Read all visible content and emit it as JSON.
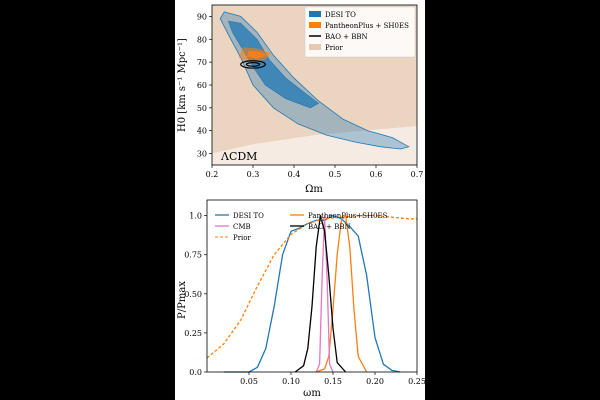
{
  "colors": {
    "desi": "#1f77b4",
    "pantheon": "#ff7f0e",
    "prior": "#e6c9b0",
    "cmb": "#e377c2",
    "bao": "#000000"
  },
  "chart_data": [
    {
      "type": "contour",
      "xlabel": "Ωm",
      "ylabel": "H0 [km s⁻¹ Mpc⁻¹]",
      "xlim": [
        0.2,
        0.7
      ],
      "ylim": [
        25,
        95
      ],
      "xticks": [
        "0.2",
        "0.3",
        "0.4",
        "0.5",
        "0.6",
        "0.7"
      ],
      "yticks": [
        "30",
        "40",
        "50",
        "60",
        "70",
        "80",
        "90"
      ],
      "legend_position": "top-right",
      "legend": [
        "DESI TO",
        "PantheonPlus + SH0ES",
        "BAO + BBN",
        "Prior"
      ],
      "annotation": "ΛCDM",
      "series": [
        {
          "name": "DESI TO",
          "outer": [
            [
              0.23,
              92
            ],
            [
              0.27,
              90
            ],
            [
              0.31,
              83
            ],
            [
              0.35,
              73
            ],
            [
              0.4,
              63
            ],
            [
              0.46,
              53
            ],
            [
              0.52,
              45
            ],
            [
              0.58,
              40
            ],
            [
              0.64,
              37
            ],
            [
              0.68,
              33
            ],
            [
              0.66,
              32
            ],
            [
              0.61,
              33
            ],
            [
              0.55,
              35
            ],
            [
              0.48,
              38
            ],
            [
              0.41,
              43
            ],
            [
              0.35,
              50
            ],
            [
              0.3,
              60
            ],
            [
              0.27,
              72
            ],
            [
              0.24,
              82
            ],
            [
              0.22,
              89
            ]
          ],
          "inner": [
            [
              0.24,
              88
            ],
            [
              0.27,
              87
            ],
            [
              0.31,
              80
            ],
            [
              0.34,
              71
            ],
            [
              0.38,
              63
            ],
            [
              0.43,
              56
            ],
            [
              0.46,
              52
            ],
            [
              0.44,
              50
            ],
            [
              0.38,
              54
            ],
            [
              0.33,
              60
            ],
            [
              0.3,
              68
            ],
            [
              0.27,
              77
            ],
            [
              0.25,
              83
            ]
          ]
        },
        {
          "name": "PantheonPlus + SH0ES",
          "outer": [
            [
              0.275,
              76.5
            ],
            [
              0.31,
              76
            ],
            [
              0.345,
              74
            ],
            [
              0.33,
              71
            ],
            [
              0.29,
              70
            ],
            [
              0.265,
              72
            ]
          ],
          "inner": [
            [
              0.29,
              75
            ],
            [
              0.32,
              74.5
            ],
            [
              0.335,
              73
            ],
            [
              0.31,
              71.5
            ],
            [
              0.285,
              72.5
            ]
          ]
        },
        {
          "name": "BAO + BBN",
          "outer_center": [
            0.3,
            69
          ],
          "outer_radius": [
            0.03,
            1.6
          ],
          "inner_center": [
            0.3,
            69
          ],
          "inner_radius": [
            0.016,
            0.8
          ]
        },
        {
          "name": "Prior",
          "region": [
            [
              0.2,
              95
            ],
            [
              0.7,
              95
            ],
            [
              0.7,
              42
            ],
            [
              0.45,
              38
            ],
            [
              0.3,
              34
            ],
            [
              0.2,
              30
            ]
          ],
          "light_region": [
            [
              0.2,
              30
            ],
            [
              0.3,
              34
            ],
            [
              0.45,
              38
            ],
            [
              0.7,
              42
            ],
            [
              0.7,
              25
            ],
            [
              0.2,
              25
            ]
          ]
        }
      ]
    },
    {
      "type": "line",
      "xlabel": "ωm",
      "ylabel": "P/Pmax",
      "xlim": [
        0.0,
        0.25
      ],
      "ylim": [
        0.0,
        1.1
      ],
      "xticks": [
        "0.05",
        "0.10",
        "0.15",
        "0.20",
        "0.25"
      ],
      "yticks": [
        "0.0",
        "0.25",
        "0.50",
        "0.75",
        "1.0"
      ],
      "legend_position": "top",
      "legend": [
        "DESI TO",
        "PantheonPlus+SH0ES",
        "CMB",
        "BAO + BBN",
        "Prior"
      ],
      "series": [
        {
          "name": "DESI TO",
          "x": [
            0.02,
            0.05,
            0.06,
            0.07,
            0.08,
            0.09,
            0.1,
            0.11,
            0.12,
            0.13,
            0.14,
            0.15,
            0.16,
            0.17,
            0.18,
            0.19,
            0.2,
            0.21,
            0.22,
            0.23
          ],
          "values": [
            0.0,
            0.0,
            0.03,
            0.15,
            0.42,
            0.75,
            0.9,
            0.92,
            0.95,
            0.97,
            0.97,
            1.0,
            0.98,
            0.93,
            0.87,
            0.62,
            0.22,
            0.05,
            0.01,
            0.0
          ]
        },
        {
          "name": "PantheonPlus+SH0ES",
          "x": [
            0.13,
            0.14,
            0.145,
            0.15,
            0.155,
            0.16,
            0.165,
            0.17,
            0.175,
            0.18,
            0.19
          ],
          "values": [
            0.0,
            0.02,
            0.1,
            0.4,
            0.75,
            0.97,
            1.0,
            0.8,
            0.4,
            0.1,
            0.0
          ]
        },
        {
          "name": "CMB",
          "x": [
            0.13,
            0.134,
            0.137,
            0.14,
            0.143,
            0.146,
            0.15
          ],
          "values": [
            0.0,
            0.05,
            0.6,
            1.0,
            0.6,
            0.05,
            0.0
          ]
        },
        {
          "name": "BAO + BBN",
          "x": [
            0.105,
            0.115,
            0.12,
            0.125,
            0.13,
            0.135,
            0.14,
            0.145,
            0.15,
            0.155,
            0.165
          ],
          "values": [
            0.0,
            0.04,
            0.15,
            0.42,
            0.8,
            1.0,
            0.9,
            0.62,
            0.28,
            0.06,
            0.0
          ]
        },
        {
          "name": "Prior",
          "style": "dashed",
          "x": [
            0.0,
            0.02,
            0.04,
            0.06,
            0.08,
            0.1,
            0.12,
            0.14,
            0.16,
            0.18,
            0.2,
            0.22,
            0.24,
            0.25
          ],
          "values": [
            0.09,
            0.18,
            0.33,
            0.55,
            0.75,
            0.88,
            0.95,
            0.98,
            0.99,
            1.0,
            1.0,
            0.99,
            0.98,
            0.98
          ]
        }
      ]
    }
  ]
}
